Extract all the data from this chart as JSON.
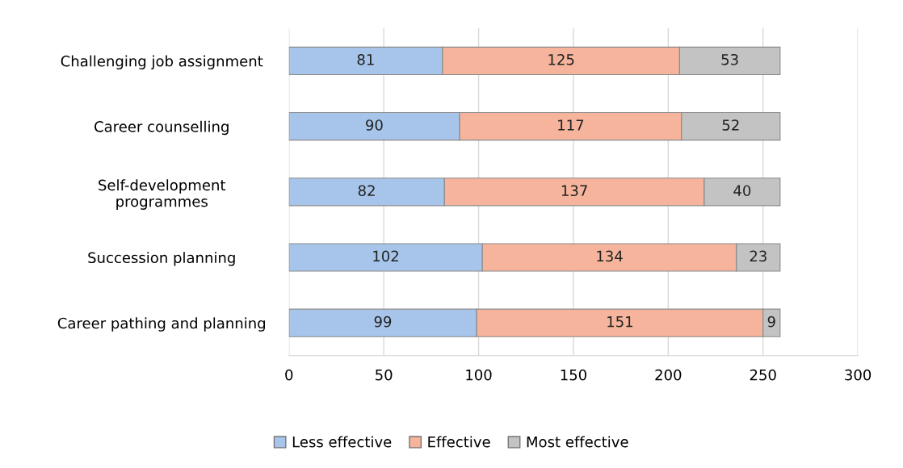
{
  "chart_data": {
    "type": "bar",
    "orientation": "horizontal",
    "stacked": true,
    "categories": [
      "Challenging job assignment",
      "Career counselling",
      "Self-development\nprogrammes",
      "Succession planning",
      "Career pathing and planning"
    ],
    "series": [
      {
        "name": "Less effective",
        "color": "#a7c5ea",
        "values": [
          81,
          90,
          82,
          102,
          99
        ]
      },
      {
        "name": "Effective",
        "color": "#f5b49b",
        "values": [
          125,
          117,
          137,
          134,
          151
        ]
      },
      {
        "name": "Most effective",
        "color": "#c3c3c3",
        "values": [
          53,
          52,
          40,
          23,
          9
        ]
      }
    ],
    "xlim": [
      0,
      300
    ],
    "xticks": [
      0,
      50,
      100,
      150,
      200,
      250,
      300
    ],
    "grid": "x",
    "legend": "bottom",
    "data_labels": true
  }
}
